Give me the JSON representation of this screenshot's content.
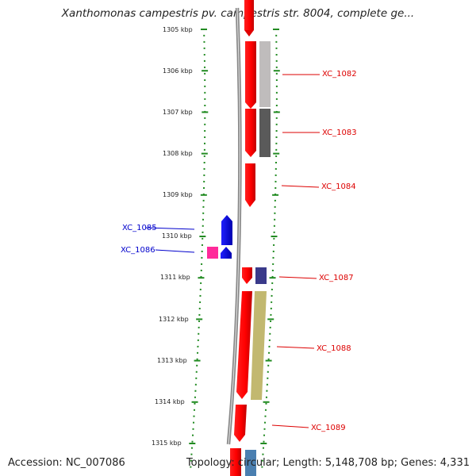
{
  "title": "Xanthomonas campestris pv. campestris str. 8004, complete ge...",
  "accession": "Accession: NC_007086",
  "topology": "Topology: circular; Length: 5,148,708 bp; Genes: 4,331",
  "ticks": [
    "1305 kbp",
    "1306 kbp",
    "1307 kbp",
    "1308 kbp",
    "1309 kbp",
    "1310 kbp",
    "1311 kbp",
    "1312 kbp",
    "1313 kbp",
    "1314 kbp",
    "1315 kbp"
  ],
  "genes": [
    {
      "label": "XC_1082",
      "strand": "+",
      "color": "#dd0000"
    },
    {
      "label": "XC_1083",
      "strand": "+",
      "color": "#dd0000"
    },
    {
      "label": "XC_1084",
      "strand": "+",
      "color": "#dd0000"
    },
    {
      "label": "XC_1085",
      "strand": "-",
      "color": "#0000cc"
    },
    {
      "label": "XC_1086",
      "strand": "-",
      "color": "#0000cc"
    },
    {
      "label": "XC_1087",
      "strand": "+",
      "color": "#dd0000"
    },
    {
      "label": "XC_1088",
      "strand": "+",
      "color": "#dd0000"
    },
    {
      "label": "XC_1089",
      "strand": "+",
      "color": "#dd0000"
    }
  ],
  "colors": {
    "forward": "#ff0000",
    "reverse": "#0000ff",
    "tick": "#228b22",
    "backbone": "#888888",
    "cog_light_gray": "#bfbcbc",
    "cog_dark_gray": "#5a5a5a",
    "cog_purple": "#3a3a8a",
    "cog_olive": "#c2b870",
    "cog_pink": "#ff2a9a"
  }
}
